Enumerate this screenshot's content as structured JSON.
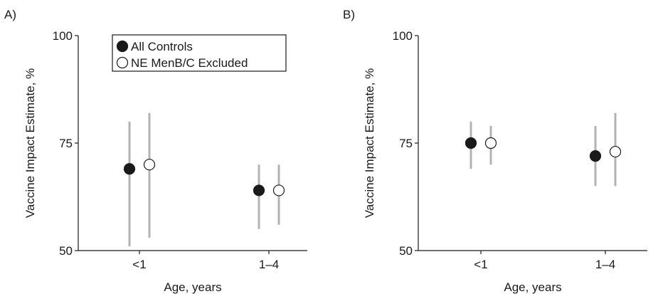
{
  "chart_data": [
    {
      "type": "scatter",
      "panel_label": "A)",
      "title": "",
      "xlabel": "Age, years",
      "ylabel": "Vaccine Impact Estimate, %",
      "categories": [
        "<1",
        "1–4"
      ],
      "ylim": [
        50,
        100
      ],
      "yticks": [
        50,
        75,
        100
      ],
      "series": [
        {
          "name": "All Controls",
          "marker": "filled",
          "values": [
            69,
            64
          ],
          "lower": [
            51,
            55
          ],
          "upper": [
            80,
            70
          ]
        },
        {
          "name": "NE MenB/C Excluded",
          "marker": "open",
          "values": [
            70,
            64
          ],
          "lower": [
            53,
            56
          ],
          "upper": [
            82,
            70
          ]
        }
      ],
      "legend": "top-left",
      "grid": false
    },
    {
      "type": "scatter",
      "panel_label": "B)",
      "title": "",
      "xlabel": "Age, years",
      "ylabel": "Vaccine Impact Estimate, %",
      "categories": [
        "<1",
        "1–4"
      ],
      "ylim": [
        50,
        100
      ],
      "yticks": [
        50,
        75,
        100
      ],
      "series": [
        {
          "name": "All Controls",
          "marker": "filled",
          "values": [
            75,
            72
          ],
          "lower": [
            69,
            65
          ],
          "upper": [
            80,
            79
          ]
        },
        {
          "name": "NE MenB/C Excluded",
          "marker": "open",
          "values": [
            75,
            73
          ],
          "lower": [
            70,
            65
          ],
          "upper": [
            79,
            82
          ]
        }
      ],
      "grid": false
    }
  ],
  "colors": {
    "filled_marker": "#1a1a1a",
    "open_marker_fill": "#ffffff",
    "error_bar": "#b3b3b3",
    "axis": "#1a1a1a"
  }
}
